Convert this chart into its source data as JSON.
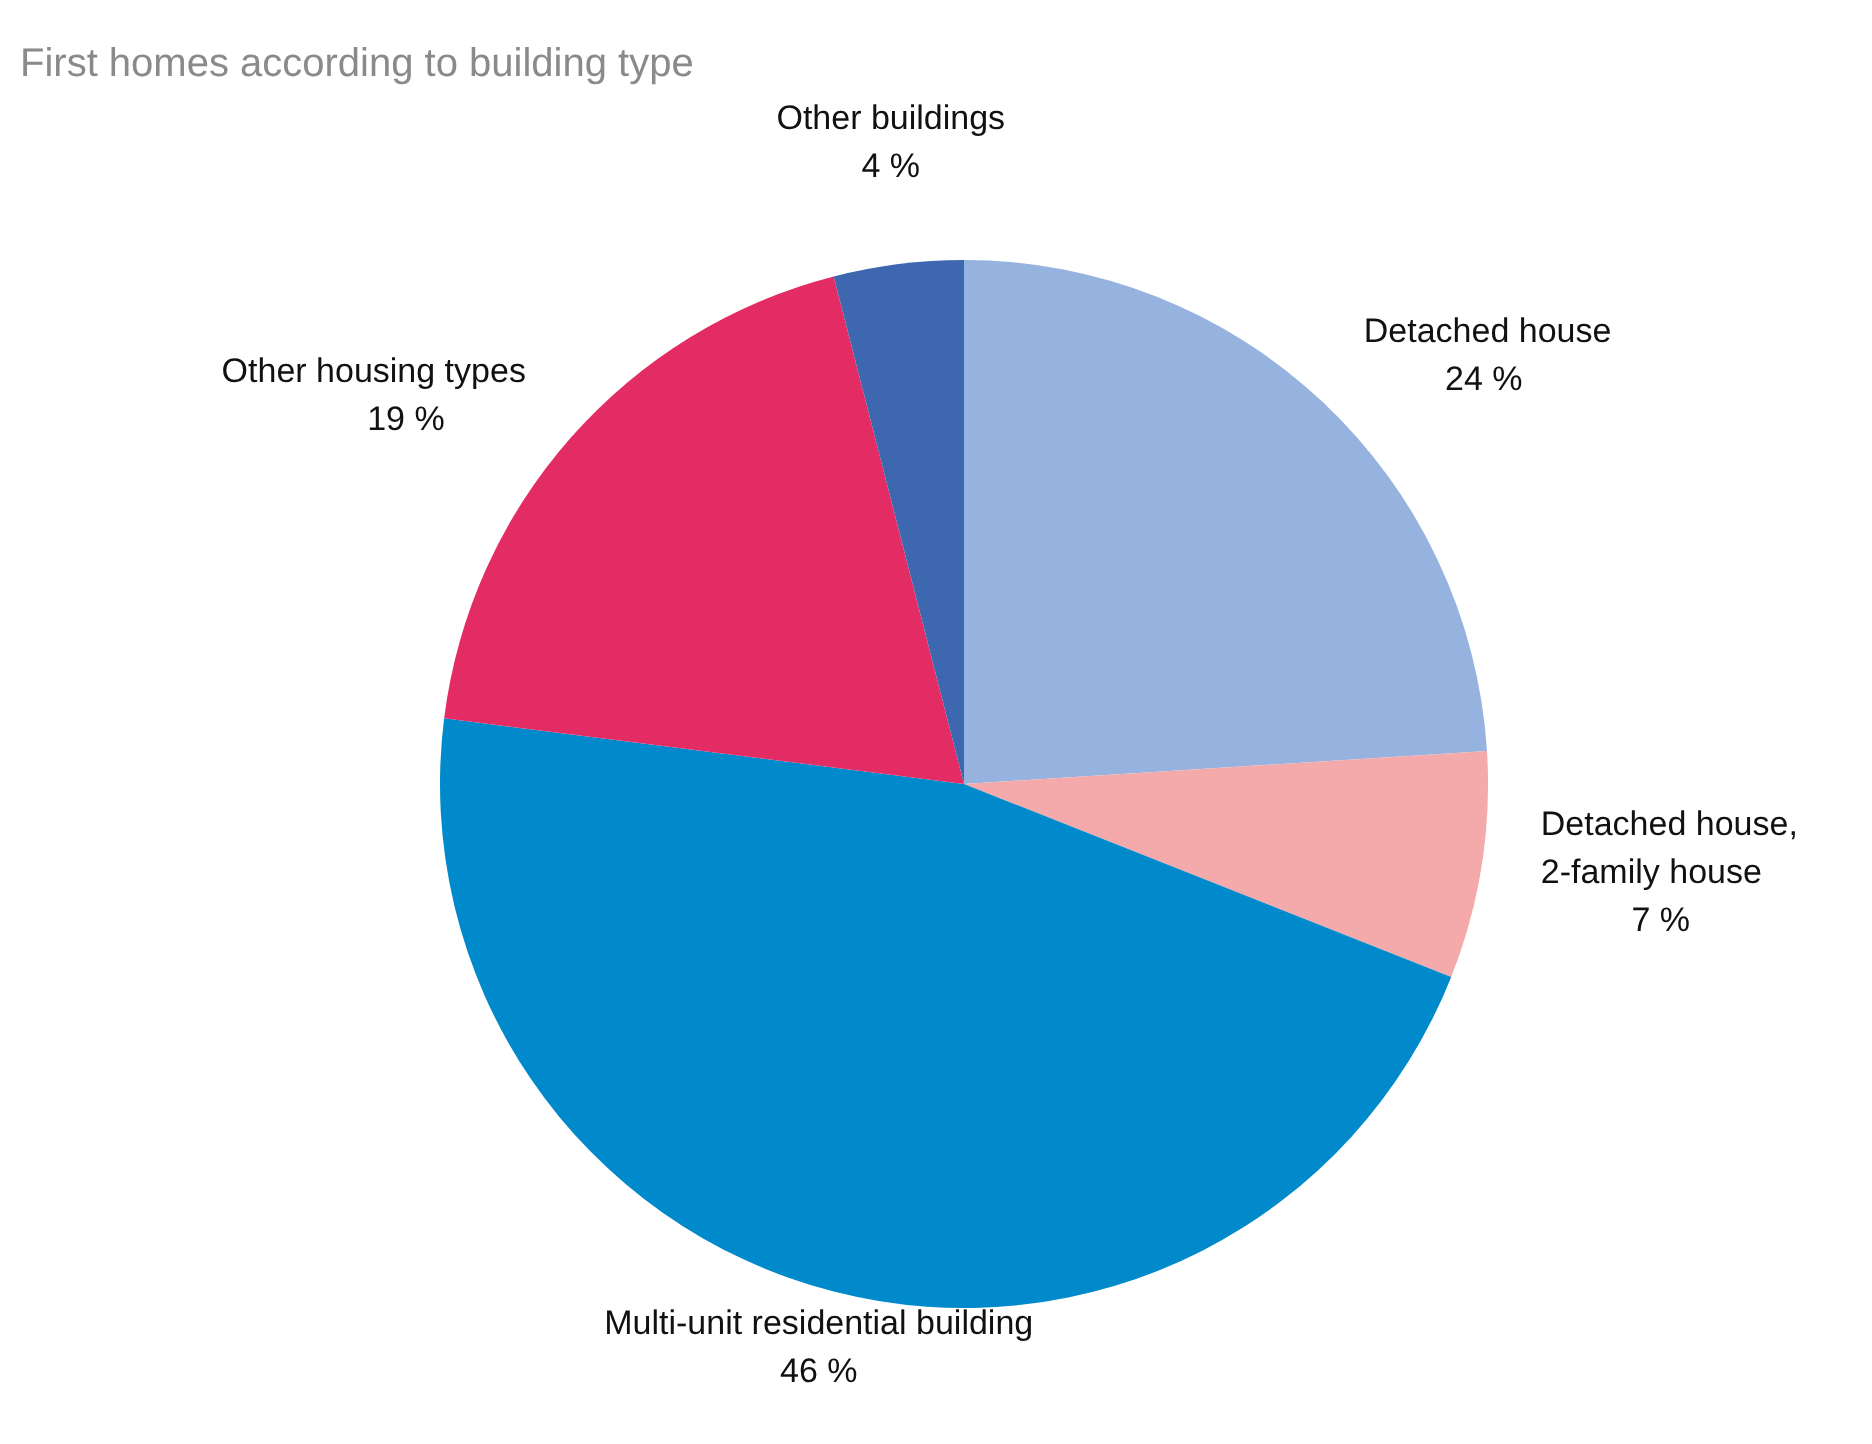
{
  "chart_data": {
    "type": "pie",
    "title": "First homes according to building type",
    "categories": [
      "Detached house",
      "Detached house, 2-family house",
      "Multi-unit residential building",
      "Other housing types",
      "Other buildings"
    ],
    "values": [
      24,
      7,
      46,
      19,
      4
    ],
    "value_labels": [
      "24 %",
      "7 %",
      "46 %",
      "19 %",
      "4 %"
    ],
    "colors": [
      "#95b3de",
      "#f4a9ab",
      "#008acb",
      "#e42c64",
      "#3d68b0"
    ]
  }
}
